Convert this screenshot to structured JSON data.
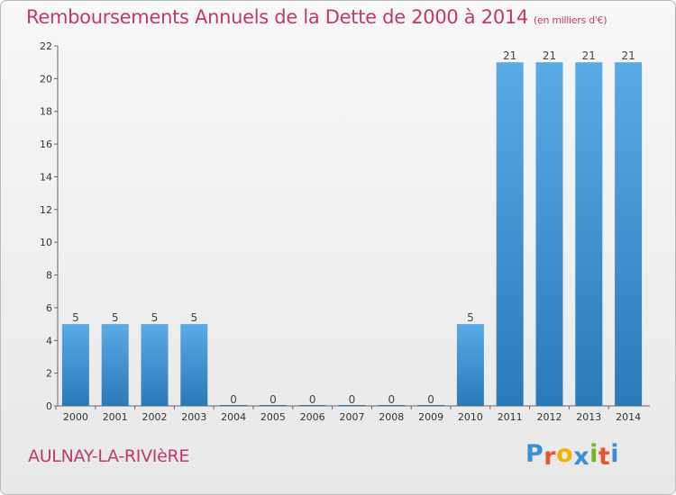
{
  "chart_data": {
    "type": "bar",
    "title": "Remboursements Annuels de la Dette de 2000 à 2014",
    "subtitle": "(en milliers d'€)",
    "categories": [
      "2000",
      "2001",
      "2002",
      "2003",
      "2004",
      "2005",
      "2006",
      "2007",
      "2008",
      "2009",
      "2010",
      "2011",
      "2012",
      "2013",
      "2014"
    ],
    "values": [
      5,
      5,
      5,
      5,
      0,
      0,
      0,
      0,
      0,
      0,
      5,
      21,
      21,
      21,
      21
    ],
    "ylim": [
      0,
      22
    ],
    "yticks": [
      0,
      2,
      4,
      6,
      8,
      10,
      12,
      14,
      16,
      18,
      20,
      22
    ],
    "xlabel": "",
    "ylabel": "",
    "colors": {
      "bar_top": "#5aaae6",
      "bar_bottom": "#2a7ab8"
    }
  },
  "footer": {
    "town": "AULNAY-LA-RIVIèRE",
    "logo_letters": [
      "P",
      "r",
      "o",
      "x",
      "i",
      "t",
      "i"
    ],
    "logo_colors": [
      "#3a8fd6",
      "#e8552a",
      "#f0b400",
      "#3a8fd6",
      "#78b41e",
      "#e8552a",
      "#3a8fd6"
    ]
  }
}
